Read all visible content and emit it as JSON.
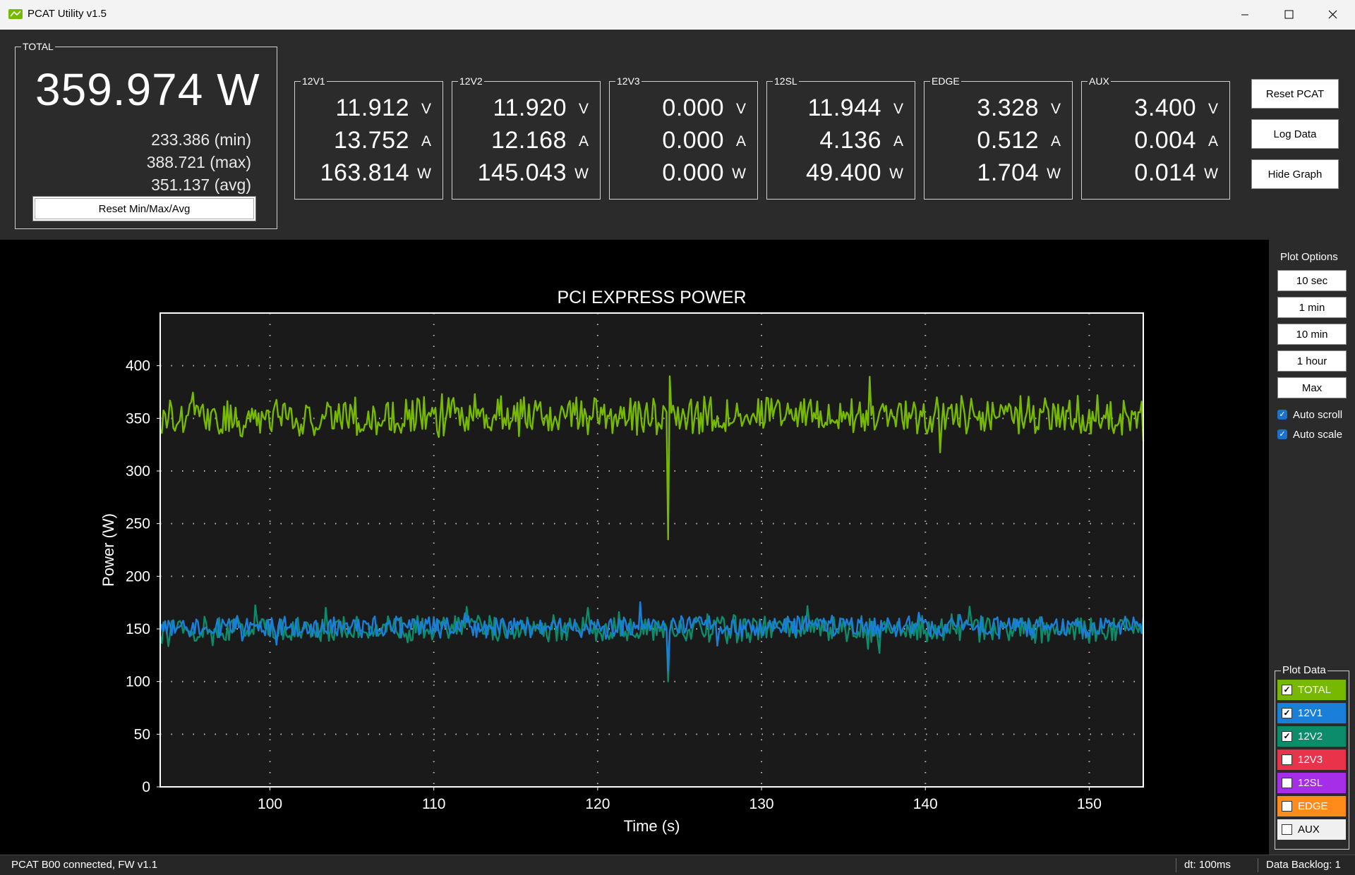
{
  "window": {
    "title": "PCAT Utility v1.5"
  },
  "total": {
    "label": "TOTAL",
    "value": "359.974 W",
    "min": "233.386 (min)",
    "max": "388.721 (max)",
    "avg": "351.137 (avg)",
    "reset_label": "Reset Min/Max/Avg"
  },
  "rails": [
    {
      "name": "12V1",
      "v": "11.912",
      "a": "13.752",
      "w": "163.814"
    },
    {
      "name": "12V2",
      "v": "11.920",
      "a": "12.168",
      "w": "145.043"
    },
    {
      "name": "12V3",
      "v": "0.000",
      "a": "0.000",
      "w": "0.000"
    },
    {
      "name": "12SL",
      "v": "11.944",
      "a": "4.136",
      "w": "49.400"
    },
    {
      "name": "EDGE",
      "v": "3.328",
      "a": "0.512",
      "w": "1.704"
    },
    {
      "name": "AUX",
      "v": "3.400",
      "a": "0.004",
      "w": "0.014"
    }
  ],
  "units": {
    "v": "V",
    "a": "A",
    "w": "W"
  },
  "buttons": {
    "reset_pcat": "Reset PCAT",
    "log_data": "Log Data",
    "hide_graph": "Hide Graph"
  },
  "plot_options": {
    "label": "Plot Options",
    "ranges": [
      "10 sec",
      "1 min",
      "10 min",
      "1 hour",
      "Max"
    ],
    "auto_scroll": "Auto scroll",
    "auto_scale": "Auto scale",
    "auto_scroll_checked": true,
    "auto_scale_checked": true
  },
  "plot_data": {
    "label": "Plot Data",
    "items": [
      {
        "name": "TOTAL",
        "color": "#76b900",
        "checked": true,
        "text_color": "#ffffff"
      },
      {
        "name": "12V1",
        "color": "#1a7fd9",
        "checked": true,
        "text_color": "#ffffff"
      },
      {
        "name": "12V2",
        "color": "#0c8c6a",
        "checked": true,
        "text_color": "#ffffff"
      },
      {
        "name": "12V3",
        "color": "#e8334a",
        "checked": false,
        "text_color": "#ffffff"
      },
      {
        "name": "12SL",
        "color": "#a62ee8",
        "checked": false,
        "text_color": "#ffffff"
      },
      {
        "name": "EDGE",
        "color": "#ff8c1a",
        "checked": false,
        "text_color": "#ffffff"
      },
      {
        "name": "AUX",
        "color": "#f0f0f0",
        "checked": false,
        "text_color": "#000000"
      }
    ]
  },
  "status": {
    "text": "PCAT B00 connected, FW v1.1",
    "dt": "dt: 100ms",
    "backlog": "Data Backlog: 1"
  },
  "chart_data": {
    "type": "line",
    "title": "PCI EXPRESS POWER",
    "xlabel": "Time (s)",
    "ylabel": "Power (W)",
    "xlim": [
      93.3,
      153.3
    ],
    "ylim": [
      0,
      450
    ],
    "xticks": [
      100,
      110,
      120,
      130,
      140,
      150
    ],
    "yticks": [
      0,
      50,
      100,
      150,
      200,
      250,
      300,
      350,
      400
    ],
    "grid": true,
    "series": [
      {
        "name": "TOTAL",
        "color": "#76b900",
        "x_start": 93.3,
        "x_step": 0.1,
        "mean": 352,
        "noise": 16,
        "spikes": [
          [
            124.3,
            235
          ],
          [
            124.4,
            390
          ]
        ]
      },
      {
        "name": "12V1",
        "color": "#1a7fd9",
        "x_start": 93.3,
        "x_step": 0.1,
        "mean": 152,
        "noise": 9,
        "spikes": [
          [
            124.3,
            110
          ]
        ]
      },
      {
        "name": "12V2",
        "color": "#0c8c6a",
        "x_start": 93.3,
        "x_step": 0.1,
        "mean": 150,
        "noise": 11,
        "spikes": [
          [
            124.3,
            100
          ]
        ]
      }
    ]
  }
}
